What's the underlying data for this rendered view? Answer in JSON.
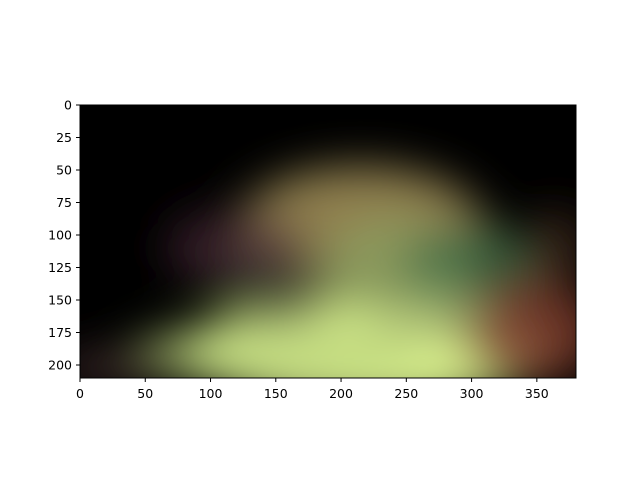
{
  "chart_data": {
    "type": "heatmap",
    "title": "",
    "xlabel": "",
    "ylabel": "",
    "xlim": [
      0,
      380
    ],
    "ylim": [
      210,
      0
    ],
    "grid": false,
    "x_ticks": [
      0,
      50,
      100,
      150,
      200,
      250,
      300,
      350
    ],
    "y_ticks": [
      0,
      25,
      50,
      75,
      100,
      125,
      150,
      175,
      200
    ],
    "x_tick_labels": [
      "0",
      "50",
      "100",
      "150",
      "200",
      "250",
      "300",
      "350"
    ],
    "y_tick_labels": [
      "0",
      "25",
      "50",
      "75",
      "100",
      "125",
      "150",
      "175",
      "200"
    ],
    "background_color": "#000000",
    "color_blobs": [
      {
        "x": 220,
        "y": 190,
        "rx": 140,
        "ry": 42,
        "color": "#e6ff96",
        "opacity": 0.95
      },
      {
        "x": 150,
        "y": 192,
        "rx": 110,
        "ry": 26,
        "color": "#b8d07a",
        "opacity": 0.7
      },
      {
        "x": 215,
        "y": 95,
        "rx": 95,
        "ry": 48,
        "color": "#a8955c",
        "opacity": 0.85
      },
      {
        "x": 245,
        "y": 125,
        "rx": 60,
        "ry": 38,
        "color": "#8aa463",
        "opacity": 0.7
      },
      {
        "x": 300,
        "y": 130,
        "rx": 55,
        "ry": 40,
        "color": "#3e6a45",
        "opacity": 0.8
      },
      {
        "x": 120,
        "y": 110,
        "rx": 55,
        "ry": 30,
        "color": "#4a2a38",
        "opacity": 0.7
      },
      {
        "x": 150,
        "y": 140,
        "rx": 45,
        "ry": 28,
        "color": "#4a4a3c",
        "opacity": 0.55
      },
      {
        "x": 345,
        "y": 175,
        "rx": 55,
        "ry": 40,
        "color": "#7a3a2c",
        "opacity": 0.85
      },
      {
        "x": 365,
        "y": 110,
        "rx": 25,
        "ry": 30,
        "color": "#5a3a2a",
        "opacity": 0.55
      },
      {
        "x": 25,
        "y": 202,
        "rx": 45,
        "ry": 12,
        "color": "#6a4a4a",
        "opacity": 0.6
      },
      {
        "x": 270,
        "y": 160,
        "rx": 45,
        "ry": 25,
        "color": "#a3b06e",
        "opacity": 0.6
      }
    ]
  }
}
